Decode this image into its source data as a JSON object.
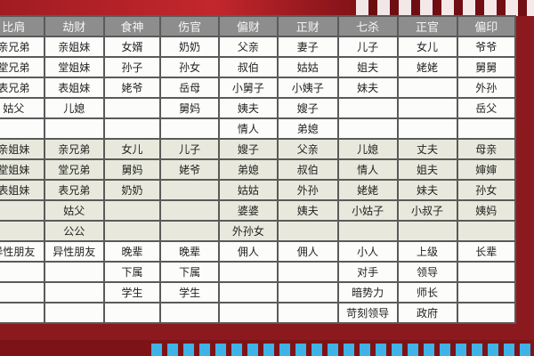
{
  "headers": [
    "比肩",
    "劫财",
    "食神",
    "伤官",
    "偏财",
    "正财",
    "七杀",
    "正官",
    "偏印"
  ],
  "rows": [
    {
      "group": "w",
      "cells": [
        "亲兄弟",
        "亲姐妹",
        "女婿",
        "奶奶",
        "父亲",
        "妻子",
        "儿子",
        "女儿",
        "爷爷"
      ]
    },
    {
      "group": "w",
      "cells": [
        "堂兄弟",
        "堂姐妹",
        "孙子",
        "孙女",
        "叔伯",
        "姑姑",
        "姐夫",
        "姥姥",
        "舅舅"
      ]
    },
    {
      "group": "w",
      "cells": [
        "表兄弟",
        "表姐妹",
        "姥爷",
        "岳母",
        "小舅子",
        "小姨子",
        "妹夫",
        "",
        "外孙"
      ]
    },
    {
      "group": "w",
      "cells": [
        "姑父",
        "儿媳",
        "",
        "舅妈",
        "姨夫",
        "嫂子",
        "",
        "",
        "岳父"
      ]
    },
    {
      "group": "w",
      "cells": [
        "",
        "",
        "",
        "",
        "情人",
        "弟媳",
        "",
        "",
        ""
      ]
    },
    {
      "group": "g",
      "cells": [
        "亲姐妹",
        "亲兄弟",
        "女儿",
        "儿子",
        "嫂子",
        "父亲",
        "儿媳",
        "丈夫",
        "母亲"
      ]
    },
    {
      "group": "g",
      "cells": [
        "堂姐妹",
        "堂兄弟",
        "舅妈",
        "姥爷",
        "弟媳",
        "叔伯",
        "情人",
        "姐夫",
        "婶婶"
      ]
    },
    {
      "group": "g",
      "cells": [
        "表姐妹",
        "表兄弟",
        "奶奶",
        "",
        "姑姑",
        "外孙",
        "姥姥",
        "妹夫",
        "孙女"
      ]
    },
    {
      "group": "g",
      "cells": [
        "",
        "姑父",
        "",
        "",
        "婆婆",
        "姨夫",
        "小姑子",
        "小叔子",
        "姨妈"
      ]
    },
    {
      "group": "g",
      "cells": [
        "",
        "公公",
        "",
        "",
        "外孙女",
        "",
        "",
        "",
        ""
      ]
    },
    {
      "group": "w",
      "cells": [
        "异性朋友",
        "异性朋友",
        "晚辈",
        "晚辈",
        "佣人",
        "佣人",
        "小人",
        "上级",
        "长辈"
      ]
    },
    {
      "group": "w",
      "cells": [
        "",
        "",
        "下属",
        "下属",
        "",
        "",
        "对手",
        "领导",
        ""
      ]
    },
    {
      "group": "w",
      "cells": [
        "",
        "",
        "学生",
        "学生",
        "",
        "",
        "暗势力",
        "师长",
        ""
      ]
    },
    {
      "group": "w",
      "cells": [
        "",
        "",
        "",
        "",
        "",
        "",
        "苛刻领导",
        "政府",
        ""
      ]
    }
  ],
  "colors": {
    "header_bg": "#8d8d8d",
    "banner": "#8b1a1f",
    "accent_blue": "#3fb3e6",
    "row_alt": "#e8e9dc"
  }
}
